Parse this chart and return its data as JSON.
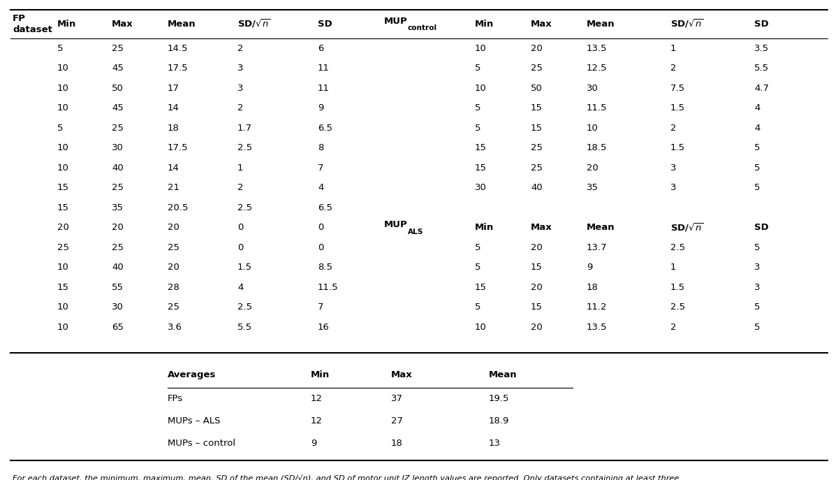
{
  "background_color": "#ffffff",
  "fp_data": [
    [
      "5",
      "25",
      "14.5",
      "2",
      "6",
      "10",
      "20",
      "13.5",
      "1",
      "3.5"
    ],
    [
      "10",
      "45",
      "17.5",
      "3",
      "11",
      "5",
      "25",
      "12.5",
      "2",
      "5.5"
    ],
    [
      "10",
      "50",
      "17",
      "3",
      "11",
      "10",
      "50",
      "30",
      "7.5",
      "4.7"
    ],
    [
      "10",
      "45",
      "14",
      "2",
      "9",
      "5",
      "15",
      "11.5",
      "1.5",
      "4"
    ],
    [
      "5",
      "25",
      "18",
      "1.7",
      "6.5",
      "5",
      "15",
      "10",
      "2",
      "4"
    ],
    [
      "10",
      "30",
      "17.5",
      "2.5",
      "8",
      "15",
      "25",
      "18.5",
      "1.5",
      "5"
    ],
    [
      "10",
      "40",
      "14",
      "1",
      "7",
      "15",
      "25",
      "20",
      "3",
      "5"
    ],
    [
      "15",
      "25",
      "21",
      "2",
      "4",
      "30",
      "40",
      "35",
      "3",
      "5"
    ],
    [
      "15",
      "35",
      "20.5",
      "2.5",
      "6.5",
      "",
      "",
      "",
      "",
      ""
    ],
    [
      "20",
      "20",
      "20",
      "0",
      "0",
      "",
      "",
      "",
      "",
      ""
    ],
    [
      "25",
      "25",
      "25",
      "0",
      "0",
      "5",
      "20",
      "13.7",
      "2.5",
      "5"
    ],
    [
      "10",
      "40",
      "20",
      "1.5",
      "8.5",
      "5",
      "15",
      "9",
      "1",
      "3"
    ],
    [
      "15",
      "55",
      "28",
      "4",
      "11.5",
      "15",
      "20",
      "18",
      "1.5",
      "3"
    ],
    [
      "10",
      "30",
      "25",
      "2.5",
      "7",
      "5",
      "15",
      "11.2",
      "2.5",
      "5"
    ],
    [
      "10",
      "65",
      "3.6",
      "5.5",
      "16",
      "10",
      "20",
      "13.5",
      "2",
      "5"
    ]
  ],
  "averages_data": [
    [
      "FPs",
      "12",
      "37",
      "19.5"
    ],
    [
      "MUPs – ALS",
      "12",
      "27",
      "18.9"
    ],
    [
      "MUPs – control",
      "9",
      "18",
      "13"
    ]
  ],
  "footnote": "For each dataset, the minimum, maximum, mean, SD of the mean (SD/√n), and SD of motor unit IZ length values are reported. Only datasets containing at least three\nsamples are included.",
  "header_fs": 9.5,
  "data_fs": 9.5,
  "footnote_fs": 8.2
}
